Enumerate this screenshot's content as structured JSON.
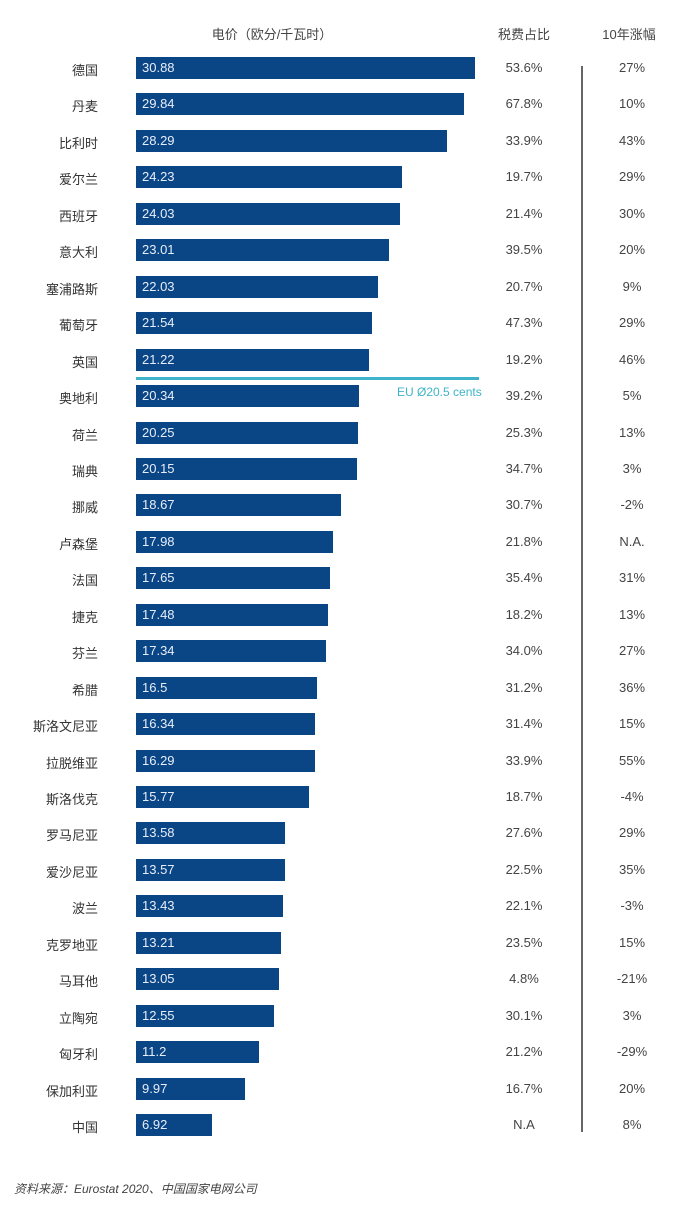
{
  "chart_data": {
    "type": "bar",
    "orientation": "horizontal",
    "headers": {
      "price": "电价（欧分/千瓦时）",
      "tax": "税费占比",
      "growth": "10年涨幅"
    },
    "reference_line": {
      "label": "EU Ø20.5 cents",
      "value": 20.5,
      "color": "#3fb3c9"
    },
    "bar_color": "#0a4586",
    "xlim": [
      0,
      30.88
    ],
    "rows": [
      {
        "country": "德国",
        "price": "30.88",
        "tax": "53.6%",
        "growth": "27%"
      },
      {
        "country": "丹麦",
        "price": "29.84",
        "tax": "67.8%",
        "growth": "10%"
      },
      {
        "country": "比利时",
        "price": "28.29",
        "tax": "33.9%",
        "growth": "43%"
      },
      {
        "country": "爱尔兰",
        "price": "24.23",
        "tax": "19.7%",
        "growth": "29%"
      },
      {
        "country": "西班牙",
        "price": "24.03",
        "tax": "21.4%",
        "growth": "30%"
      },
      {
        "country": "意大利",
        "price": "23.01",
        "tax": "39.5%",
        "growth": "20%"
      },
      {
        "country": "塞浦路斯",
        "price": "22.03",
        "tax": "20.7%",
        "growth": "9%"
      },
      {
        "country": "葡萄牙",
        "price": "21.54",
        "tax": "47.3%",
        "growth": "29%"
      },
      {
        "country": "英国",
        "price": "21.22",
        "tax": "19.2%",
        "growth": "46%"
      },
      {
        "country": "奥地利",
        "price": "20.34",
        "tax": "39.2%",
        "growth": "5%"
      },
      {
        "country": "荷兰",
        "price": "20.25",
        "tax": "25.3%",
        "growth": "13%"
      },
      {
        "country": "瑞典",
        "price": "20.15",
        "tax": "34.7%",
        "growth": "3%"
      },
      {
        "country": "挪威",
        "price": "18.67",
        "tax": "30.7%",
        "growth": "-2%"
      },
      {
        "country": "卢森堡",
        "price": "17.98",
        "tax": "21.8%",
        "growth": "N.A."
      },
      {
        "country": "法国",
        "price": "17.65",
        "tax": "35.4%",
        "growth": "31%"
      },
      {
        "country": "捷克",
        "price": "17.48",
        "tax": "18.2%",
        "growth": "13%"
      },
      {
        "country": "芬兰",
        "price": "17.34",
        "tax": "34.0%",
        "growth": "27%"
      },
      {
        "country": "希腊",
        "price": "16.5",
        "tax": "31.2%",
        "growth": "36%"
      },
      {
        "country": "斯洛文尼亚",
        "price": "16.34",
        "tax": "31.4%",
        "growth": "15%"
      },
      {
        "country": "拉脱维亚",
        "price": "16.29",
        "tax": "33.9%",
        "growth": "55%"
      },
      {
        "country": "斯洛伐克",
        "price": "15.77",
        "tax": "18.7%",
        "growth": "-4%"
      },
      {
        "country": "罗马尼亚",
        "price": "13.58",
        "tax": "27.6%",
        "growth": "29%"
      },
      {
        "country": "爱沙尼亚",
        "price": "13.57",
        "tax": "22.5%",
        "growth": "35%"
      },
      {
        "country": "波兰",
        "price": "13.43",
        "tax": "22.1%",
        "growth": "-3%"
      },
      {
        "country": "克罗地亚",
        "price": "13.21",
        "tax": "23.5%",
        "growth": "15%"
      },
      {
        "country": "马耳他",
        "price": "13.05",
        "tax": "4.8%",
        "growth": "-21%"
      },
      {
        "country": "立陶宛",
        "price": "12.55",
        "tax": "30.1%",
        "growth": "3%"
      },
      {
        "country": "匈牙利",
        "price": "11.2",
        "tax": "21.2%",
        "growth": "-29%"
      },
      {
        "country": "保加利亚",
        "price": "9.97",
        "tax": "16.7%",
        "growth": "20%"
      },
      {
        "country": "中国",
        "price": "6.92",
        "tax": "N.A",
        "growth": "8%"
      }
    ],
    "source": "资料来源：Eurostat 2020、中国国家电网公司"
  }
}
